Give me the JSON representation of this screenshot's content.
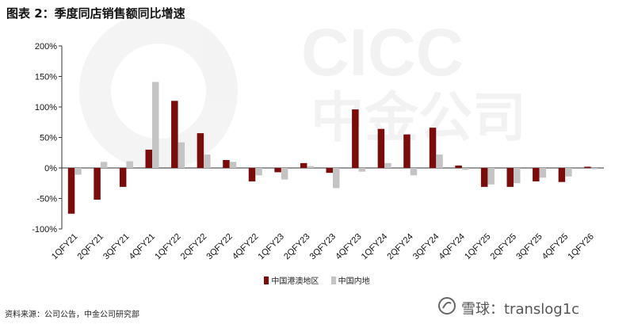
{
  "title": "图表 2：季度同店销售额同比增速",
  "source": "资料来源：公司公告，中金公司研究部",
  "watermark": {
    "logo_text": "CICC",
    "logo_cn": "中金公司",
    "footer": "雪球：translog1c"
  },
  "colors": {
    "hk_macau": "#7B0C0C",
    "mainland": "#C4C4C4"
  },
  "chart_data": {
    "type": "bar",
    "title": "",
    "xlabel": "",
    "ylabel": "",
    "ylim": [
      -100,
      200
    ],
    "yticks": [
      -100,
      -50,
      0,
      50,
      100,
      150,
      200
    ],
    "ytick_labels": [
      "-100%",
      "-50%",
      "0%",
      "50%",
      "100%",
      "150%",
      "200%"
    ],
    "categories": [
      "1QFY21",
      "2QFY21",
      "3QFY21",
      "4QFY21",
      "1QFY22",
      "2QFY22",
      "3QFY22",
      "4QFY22",
      "1QFY23",
      "2QFY23",
      "3QFY23",
      "4QFY23",
      "1QFY24",
      "2QFY24",
      "3QFY24",
      "4QFY24",
      "1QFY25",
      "2QFY25",
      "3QFY25",
      "4QFY25",
      "1QFY26"
    ],
    "series": [
      {
        "name": "中国港澳地区",
        "values": [
          -75,
          -52,
          -31,
          30,
          110,
          57,
          13,
          -22,
          -7,
          8,
          -8,
          96,
          64,
          55,
          66,
          4,
          -31,
          -31,
          -22,
          -23,
          2
        ]
      },
      {
        "name": "中国内地",
        "values": [
          -11,
          10,
          11,
          141,
          42,
          22,
          10,
          -12,
          -19,
          3,
          -33,
          -6,
          8,
          -12,
          22,
          -3,
          -27,
          -25,
          -16,
          -14,
          -2
        ]
      }
    ],
    "legend_position": "bottom",
    "grid": false
  }
}
